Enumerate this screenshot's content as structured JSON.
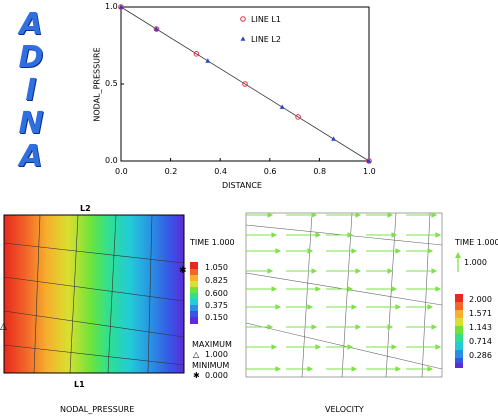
{
  "logo": {
    "letters": [
      "A",
      "D",
      "I",
      "N",
      "A"
    ]
  },
  "chart_data": {
    "type": "scatter",
    "xlabel": "DISTANCE",
    "ylabel": "NODAL_PRESSURE",
    "xlim": [
      0.0,
      1.0
    ],
    "ylim": [
      0.0,
      1.0
    ],
    "x_ticks": [
      "0.0",
      "0.2",
      "0.4",
      "0.6",
      "0.8",
      "1.0"
    ],
    "y_ticks": [
      "0.0",
      "0.5",
      "1.0"
    ],
    "legend_position": "top-right",
    "line": {
      "x": [
        0.0,
        1.0
      ],
      "y": [
        1.0,
        0.0
      ]
    },
    "series": [
      {
        "name": "LINE L1",
        "marker": "circle",
        "color": "#e0304a",
        "x": [
          0.0,
          0.143,
          0.304,
          0.5,
          0.714,
          1.0
        ],
        "y": [
          1.0,
          0.857,
          0.696,
          0.5,
          0.286,
          0.0
        ]
      },
      {
        "name": "LINE L2",
        "marker": "triangle",
        "color": "#2840d0",
        "x": [
          0.0,
          0.143,
          0.35,
          0.65,
          0.857,
          1.0
        ],
        "y": [
          1.0,
          0.857,
          0.65,
          0.35,
          0.143,
          0.0
        ]
      }
    ]
  },
  "pressure_panel": {
    "caption": "NODAL_PRESSURE",
    "top_label": "L2",
    "bottom_label": "L1",
    "time_label": "TIME 1.000",
    "scale_values": [
      "1.050",
      "0.825",
      "0.600",
      "0.375",
      "0.150"
    ],
    "maximum_label": "MAXIMUM",
    "maximum_value": "1.000",
    "minimum_label": "MINIMUM",
    "minimum_value": "0.000",
    "maximum_symbol": "△",
    "minimum_symbol": "✱"
  },
  "velocity_panel": {
    "caption": "VELOCITY",
    "time_label": "TIME 1.000",
    "arrow_scale_value": "1.000",
    "scale_values": [
      "2.000",
      "1.571",
      "1.143",
      "0.714",
      "0.286"
    ]
  },
  "colors": {
    "logo": "#2f6fe0",
    "arrow": "#7ee04a",
    "mesh": "#555555"
  }
}
